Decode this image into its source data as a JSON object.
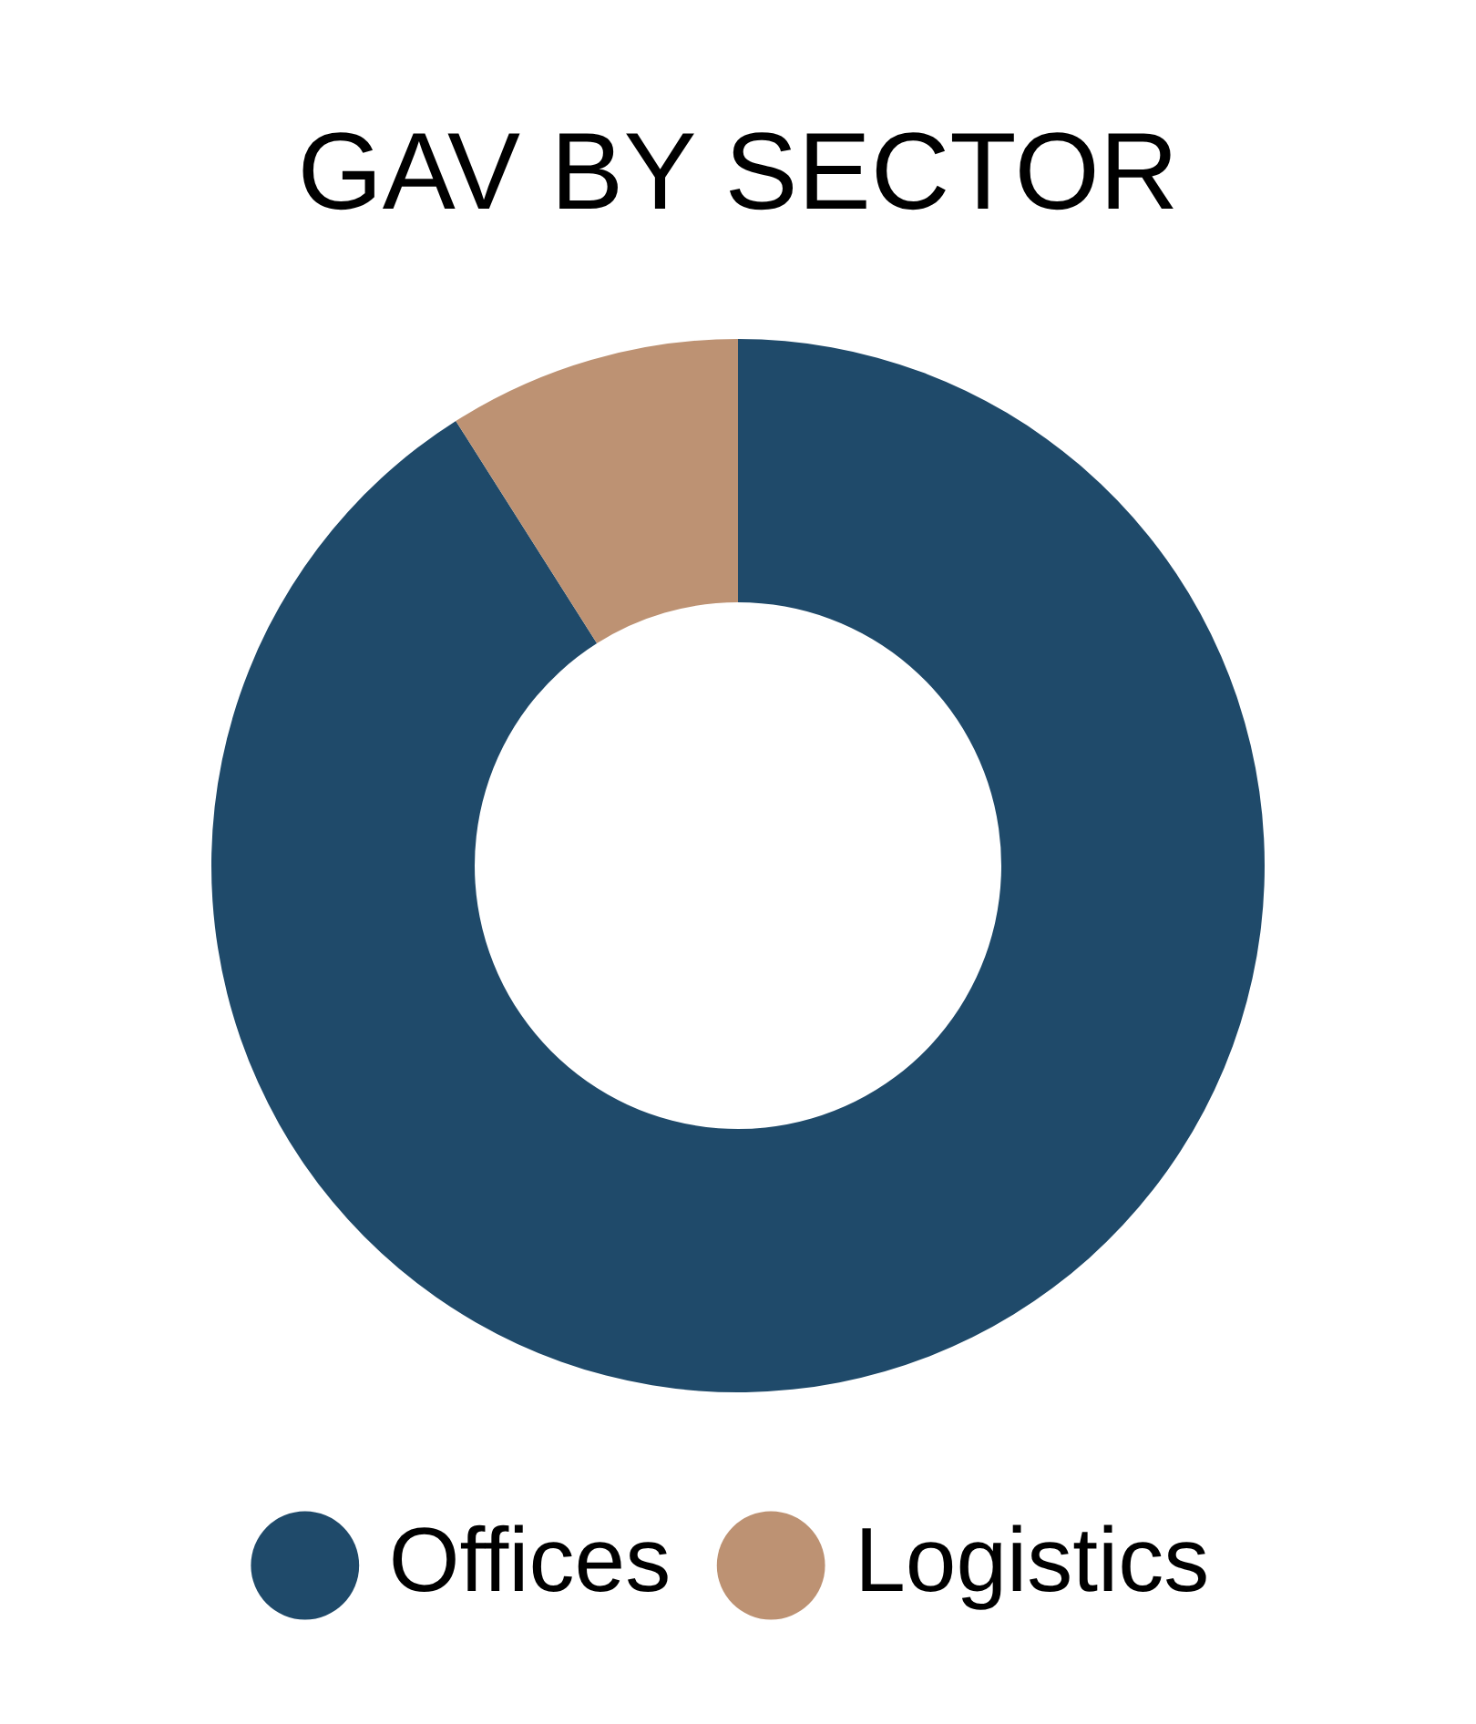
{
  "chart_data": {
    "type": "donut",
    "title": "GAV BY SECTOR",
    "categories": [
      "Offices",
      "Logistics"
    ],
    "values": [
      91,
      9
    ],
    "colors": [
      "#1f4a6a",
      "#bd9273"
    ],
    "legend": "bottom"
  }
}
